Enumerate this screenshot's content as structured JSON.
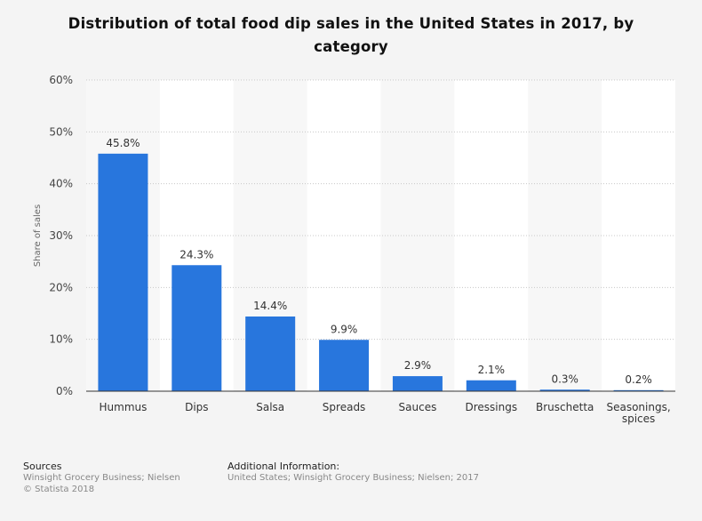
{
  "chart_data": {
    "type": "bar",
    "title": "Distribution of total food dip sales in the United States in 2017, by category",
    "xlabel": "",
    "ylabel": "Share of sales",
    "ylim": [
      0,
      60
    ],
    "yticks": [
      "0%",
      "10%",
      "20%",
      "30%",
      "40%",
      "50%",
      "60%"
    ],
    "categories": [
      "Hummus",
      "Dips",
      "Salsa",
      "Spreads",
      "Sauces",
      "Dressings",
      "Bruschetta",
      "Seasonings, spices"
    ],
    "values": [
      45.8,
      24.3,
      14.4,
      9.9,
      2.9,
      2.1,
      0.3,
      0.2
    ],
    "data_labels": [
      "45.8%",
      "24.3%",
      "14.4%",
      "9.9%",
      "2.9%",
      "2.1%",
      "0.3%",
      "0.2%"
    ],
    "grid": true,
    "bar_color": "#2876dd"
  },
  "footer": {
    "sources_heading": "Sources",
    "sources_line1": "Winsight Grocery Business; Nielsen",
    "sources_line2": "© Statista 2018",
    "additional_heading": "Additional Information:",
    "additional_text": "United States; Winsight Grocery Business; Nielsen; 2017"
  }
}
